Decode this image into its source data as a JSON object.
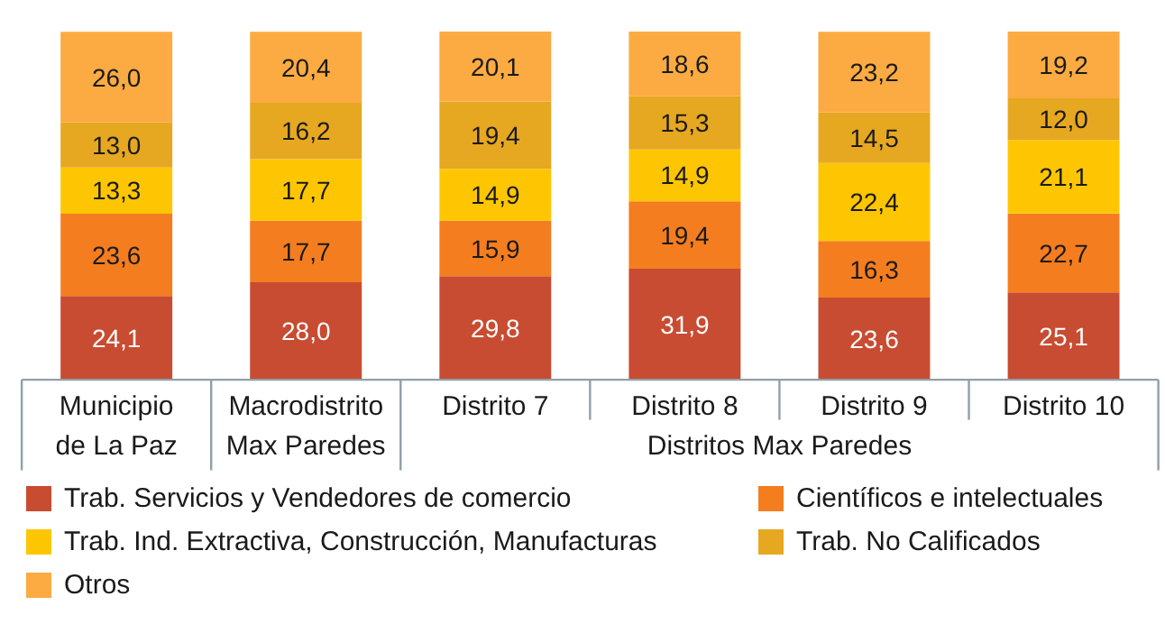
{
  "chart_data": {
    "type": "bar",
    "stacked": true,
    "legend": "bottom",
    "grid": false,
    "categories": [
      "Municipio\nde La Paz",
      "Macrodistrito\nMax Paredes",
      "Distrito 7",
      "Distrito 8",
      "Distrito 9",
      "Distrito 10"
    ],
    "annotations": [
      "Distritos Max Paredes"
    ],
    "series": [
      {
        "name": "Trab. Servicios y Vendedores de comercio",
        "color": "#c84c32",
        "values": [
          24.1,
          28.0,
          29.8,
          31.9,
          23.6,
          25.1
        ],
        "value_labels": [
          "24,1",
          "28,0",
          "29,8",
          "31,9",
          "23,6",
          "25,1"
        ]
      },
      {
        "name": "Científicos e intelectuales",
        "color": "#f47d1f",
        "values": [
          23.6,
          17.7,
          15.9,
          19.4,
          16.3,
          22.7
        ],
        "value_labels": [
          "23,6",
          "17,7",
          "15,9",
          "19,4",
          "16,3",
          "22,7"
        ]
      },
      {
        "name": "Trab. Ind. Extractiva, Construcción, Manufacturas",
        "color": "#fec602",
        "values": [
          13.3,
          17.7,
          14.9,
          14.9,
          22.4,
          21.1
        ],
        "value_labels": [
          "13,3",
          "17,7",
          "14,9",
          "14,9",
          "22,4",
          "21,1"
        ]
      },
      {
        "name": "Trab. No Calificados",
        "color": "#e6a721",
        "values": [
          13.0,
          16.2,
          19.4,
          15.3,
          14.5,
          12.0
        ],
        "value_labels": [
          "13,0",
          "16,2",
          "19,4",
          "15,3",
          "14,5",
          "12,0"
        ]
      },
      {
        "name": "Otros",
        "color": "#fbab42",
        "values": [
          26.0,
          20.4,
          20.1,
          18.6,
          23.2,
          19.2
        ],
        "value_labels": [
          "26,0",
          "20,4",
          "20,1",
          "18,6",
          "23,2",
          "19,2"
        ]
      }
    ]
  }
}
